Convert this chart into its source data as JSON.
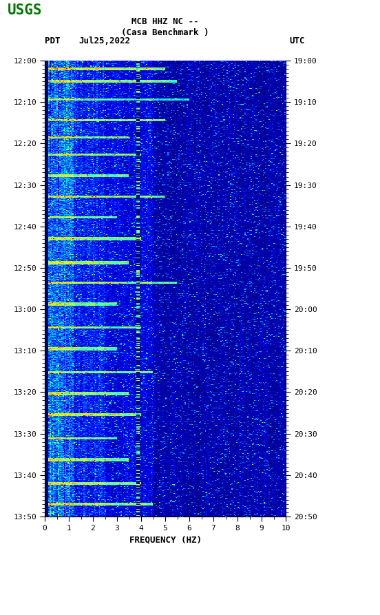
{
  "title_line1": "MCB HHZ NC --",
  "title_line2": "(Casa Benchmark )",
  "left_label": "PDT",
  "date_label": "Jul25,2022",
  "right_label": "UTC",
  "xlabel": "FREQUENCY (HZ)",
  "freq_min": 0,
  "freq_max": 10,
  "pdt_ticks": [
    "12:00",
    "12:10",
    "12:20",
    "12:30",
    "12:40",
    "12:50",
    "13:00",
    "13:10",
    "13:20",
    "13:30",
    "13:40",
    "13:50"
  ],
  "utc_ticks": [
    "19:00",
    "19:10",
    "19:20",
    "19:30",
    "19:40",
    "19:50",
    "20:00",
    "20:10",
    "20:20",
    "20:30",
    "20:40",
    "20:50"
  ],
  "freq_ticks": [
    0,
    1,
    2,
    3,
    4,
    5,
    6,
    7,
    8,
    9,
    10
  ],
  "bg_color": "#ffffff",
  "spectrogram_cmap": "jet",
  "n_time": 660,
  "n_freq": 200,
  "random_seed": 42,
  "logo_color": "#007700",
  "font_family": "monospace",
  "tick_fontsize": 8,
  "label_fontsize": 9,
  "title_fontsize": 9
}
